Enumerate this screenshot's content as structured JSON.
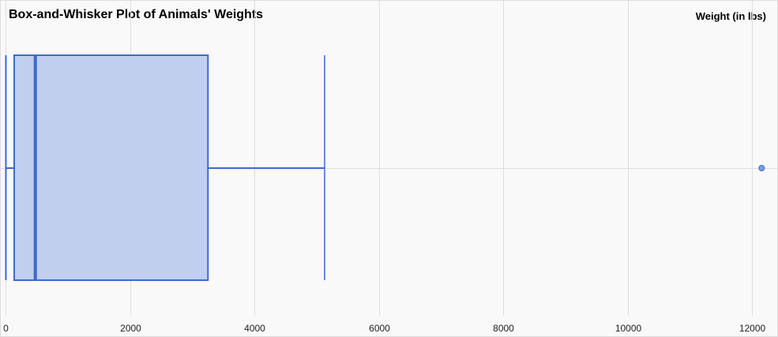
{
  "chart_data": {
    "type": "box",
    "title": "Box-and-Whisker Plot of Animals' Weights",
    "xlabel": "Weight (in lbs)",
    "ylabel": "",
    "xlim": [
      -80,
      12400
    ],
    "xticks": [
      0,
      2000,
      4000,
      6000,
      8000,
      10000,
      12000
    ],
    "tick_labels": [
      "0",
      "2000",
      "4000",
      "6000",
      "8000",
      "10000",
      "12000"
    ],
    "grid": true,
    "orientation": "horizontal",
    "series": [
      {
        "min": 2,
        "q1": 135,
        "median": 475,
        "q3": 3250,
        "max": 5125,
        "outliers": [
          12150
        ]
      }
    ],
    "colors": {
      "box_fill": "#c0cfee",
      "box_stroke": "#3d6acb",
      "outlier_fill": "#7f9cea",
      "grid": "#dedede",
      "background": "#f9f9f9"
    }
  }
}
